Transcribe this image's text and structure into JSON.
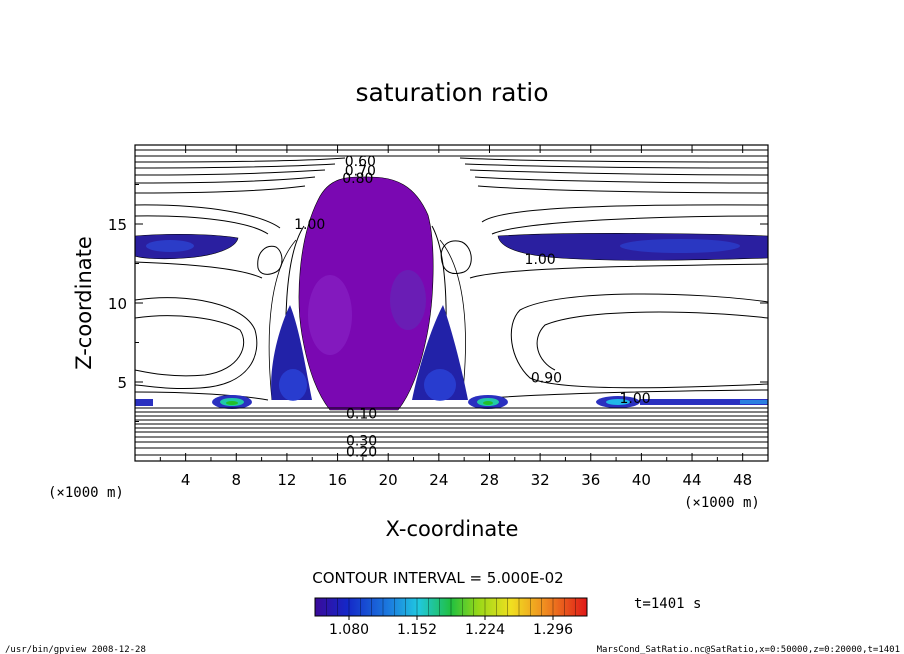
{
  "chart_data": {
    "type": "heatmap",
    "title": "saturation ratio",
    "xlabel": "X-coordinate",
    "ylabel": "Z-coordinate",
    "x_unit_label": "(×1000 m)",
    "y_unit_label": "(×1000 m)",
    "xlim": [
      0,
      50
    ],
    "ylim": [
      0,
      20
    ],
    "x_ticks": [
      "4",
      "8",
      "12",
      "16",
      "20",
      "24",
      "28",
      "32",
      "36",
      "40",
      "44",
      "48"
    ],
    "x_tick_values": [
      4,
      8,
      12,
      16,
      20,
      24,
      28,
      32,
      36,
      40,
      44,
      48
    ],
    "y_ticks": [
      "5",
      "10",
      "15"
    ],
    "y_tick_values": [
      5,
      10,
      15
    ],
    "contour_interval_label": "CONTOUR INTERVAL = 5.000E-02",
    "contour_labels": [
      {
        "text": "0.60",
        "x": 17.8,
        "z": 19.0
      },
      {
        "text": "0.70",
        "x": 17.8,
        "z": 18.4
      },
      {
        "text": "0.80",
        "x": 17.6,
        "z": 17.9
      },
      {
        "text": "1.00",
        "x": 13.8,
        "z": 15.0
      },
      {
        "text": "1.00",
        "x": 32.0,
        "z": 12.8
      },
      {
        "text": "0.90",
        "x": 32.5,
        "z": 5.3
      },
      {
        "text": "1.00",
        "x": 39.5,
        "z": 4.0
      },
      {
        "text": "0.10",
        "x": 17.9,
        "z": 3.0
      },
      {
        "text": "0.30",
        "x": 17.9,
        "z": 1.3
      },
      {
        "text": "0.20",
        "x": 17.9,
        "z": 0.6
      }
    ],
    "colorbar": {
      "min": 1.044,
      "max": 1.332,
      "ticks": [
        "1.080",
        "1.152",
        "1.224",
        "1.296"
      ],
      "tick_values": [
        1.08,
        1.152,
        1.224,
        1.296
      ]
    },
    "colors": {
      "cloud": "#7a08b2",
      "low": "#26208c",
      "mid": "#20b8e8",
      "green": "#22c02a",
      "high": "#e01818"
    }
  },
  "time_label": "t=1401 s",
  "footer_left": "/usr/bin/gpview   2008-12-28",
  "footer_right": "MarsCond_SatRatio.nc@SatRatio,x=0:50000,z=0:20000,t=1401"
}
